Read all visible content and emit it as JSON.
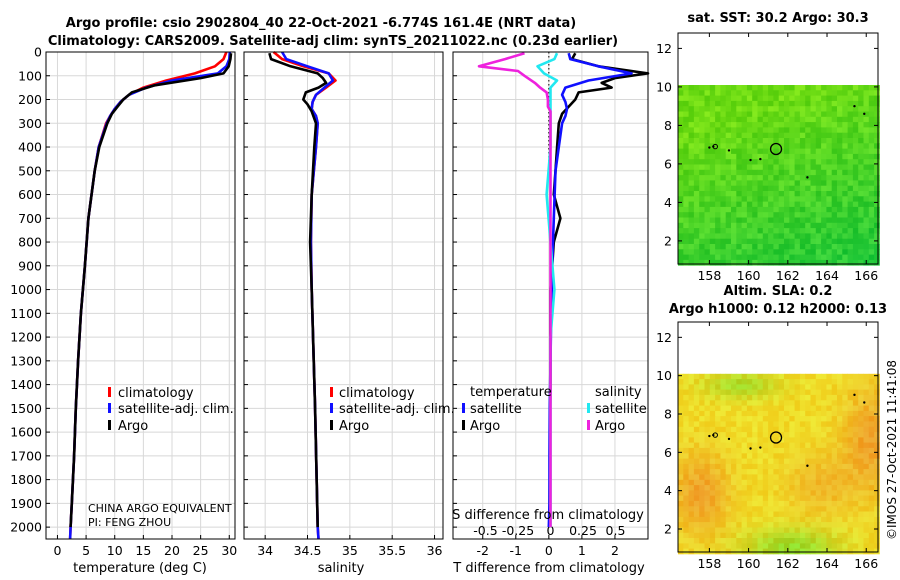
{
  "title": {
    "line1": "Argo profile: csio 2902804_40 22-Oct-2021 -6.774S 161.4E (NRT data)",
    "line2": "Climatology: CARS2009. Satellite-adj clim: synTS_20211022.nc (0.23d earlier)"
  },
  "colors": {
    "climatology": "#ff0000",
    "satellite": "#1010ff",
    "argo": "#000000",
    "s_sat": "#22e8f0",
    "s_argo": "#ee22dd"
  },
  "labels": {
    "temp_xlabel": "temperature (deg C)",
    "sal_xlabel": "salinity",
    "diff_xlabel": "T difference from climatology",
    "diff_s_label": "S difference from climatology",
    "sst_title": "sat. SST: 30.2 Argo: 30.3",
    "sla_title1": "Altim. SLA: 0.2",
    "sla_title2": "Argo h1000: 0.12 h2000: 0.13",
    "credit": "©IMOS 27-Oct-2021 11:41:08",
    "note1": "CHINA ARGO EQUIVALENT",
    "note2": "PI: FENG ZHOU"
  },
  "legend": {
    "climatology": "climatology",
    "satellite_adj": "satellite-adj. clim.",
    "argo": "Argo",
    "temperature": "temperature",
    "salinity": "salinity",
    "satellite": "satellite"
  },
  "chart_data": [
    {
      "type": "line",
      "name": "temperature-profile",
      "xlabel": "temperature (deg C)",
      "ylabel": "depth",
      "xlim": [
        -2,
        31
      ],
      "ylim": [
        2050,
        0
      ],
      "xticks": [
        0,
        5,
        10,
        15,
        20,
        25,
        30
      ],
      "yticks": [
        0,
        100,
        200,
        300,
        400,
        500,
        600,
        700,
        800,
        900,
        1000,
        1100,
        1200,
        1300,
        1400,
        1500,
        1600,
        1700,
        1800,
        1900,
        2000
      ],
      "series": [
        {
          "name": "climatology",
          "depth": [
            0,
            30,
            60,
            90,
            120,
            150,
            180,
            210,
            240,
            270,
            300,
            400,
            500,
            700,
            900,
            1100,
            1300,
            1500,
            1700,
            1900,
            2000,
            2050
          ],
          "values": [
            29.5,
            29,
            27.5,
            24,
            19,
            15,
            12.5,
            11,
            10,
            9.2,
            8.5,
            7.2,
            6.5,
            5.4,
            4.8,
            4.1,
            3.6,
            3.2,
            2.9,
            2.5,
            2.3,
            2.2
          ]
        },
        {
          "name": "satellite-adj. clim.",
          "depth": [
            0,
            30,
            60,
            90,
            120,
            150,
            180,
            210,
            240,
            270,
            300,
            400,
            500,
            700,
            900,
            1100,
            1300,
            1500,
            1700,
            1900,
            2000,
            2050
          ],
          "values": [
            30.1,
            30,
            29.5,
            28,
            20,
            15.5,
            12.5,
            11,
            10,
            9.2,
            8.6,
            7.2,
            6.5,
            5.4,
            4.8,
            4.1,
            3.6,
            3.2,
            2.9,
            2.5,
            2.3,
            2.2
          ]
        },
        {
          "name": "Argo",
          "depth": [
            5,
            30,
            60,
            90,
            110,
            140,
            170,
            200,
            230,
            260,
            300,
            400,
            500,
            700,
            900,
            1100,
            1300,
            1500,
            1700,
            1900,
            2000
          ],
          "values": [
            30.3,
            30.2,
            29.9,
            29,
            25,
            17,
            13,
            11.5,
            10.5,
            9.5,
            8.7,
            7.3,
            6.5,
            5.4,
            4.8,
            4.1,
            3.6,
            3.2,
            2.9,
            2.5,
            2.3
          ]
        }
      ]
    },
    {
      "type": "line",
      "name": "salinity-profile",
      "xlabel": "salinity",
      "ylabel": "depth",
      "xlim": [
        33.75,
        36.1
      ],
      "ylim": [
        2050,
        0
      ],
      "xticks": [
        34,
        34.5,
        35,
        35.5,
        36
      ],
      "series": [
        {
          "name": "climatology",
          "depth": [
            0,
            30,
            60,
            90,
            120,
            150,
            180,
            210,
            240,
            270,
            300,
            400,
            600,
            800,
            1000,
            1500,
            2000,
            2050
          ],
          "values": [
            34.1,
            34.2,
            34.45,
            34.75,
            34.83,
            34.72,
            34.6,
            34.56,
            34.55,
            34.6,
            34.62,
            34.6,
            34.55,
            34.54,
            34.55,
            34.59,
            34.62,
            34.63
          ]
        },
        {
          "name": "satellite-adj. clim.",
          "depth": [
            0,
            30,
            60,
            90,
            120,
            150,
            180,
            210,
            240,
            270,
            300,
            400,
            600,
            800,
            1000,
            1500,
            2000,
            2050
          ],
          "values": [
            34.2,
            34.25,
            34.5,
            34.75,
            34.8,
            34.7,
            34.6,
            34.56,
            34.55,
            34.6,
            34.62,
            34.6,
            34.55,
            34.54,
            34.55,
            34.59,
            34.62,
            34.63
          ]
        },
        {
          "name": "Argo",
          "depth": [
            5,
            30,
            60,
            90,
            110,
            130,
            150,
            170,
            200,
            220,
            250,
            300,
            400,
            600,
            800,
            1000,
            1500,
            2000
          ],
          "values": [
            34.05,
            34.07,
            34.3,
            34.62,
            34.68,
            34.72,
            34.63,
            34.48,
            34.45,
            34.5,
            34.55,
            34.6,
            34.58,
            34.55,
            34.53,
            34.55,
            34.59,
            34.62
          ]
        }
      ]
    },
    {
      "type": "line",
      "name": "difference-profile",
      "xlabel": "T difference from climatology",
      "ylabel": "depth",
      "xlim": [
        -2.9,
        3.0
      ],
      "ylim": [
        2050,
        0
      ],
      "xticks": [
        -2,
        -1,
        0,
        1,
        2
      ],
      "top_xlabel": "S difference from climatology",
      "top_xticks": [
        -0.5,
        -0.25,
        0,
        0.25,
        0.5
      ],
      "series": [
        {
          "name": "temperature Argo",
          "depth": [
            5,
            30,
            60,
            90,
            110,
            130,
            150,
            170,
            200,
            230,
            260,
            300,
            400,
            500,
            600,
            700,
            800,
            900,
            1000,
            1200,
            1400,
            1600,
            1800,
            2000
          ],
          "values": [
            0.8,
            0.7,
            1.5,
            3.0,
            2.0,
            1.6,
            1.9,
            0.9,
            0.8,
            0.6,
            0.4,
            0.3,
            0.25,
            0.2,
            0.15,
            0.35,
            0.15,
            0.1,
            0.05,
            0.05,
            0.05,
            0.03,
            0.03,
            0.02
          ]
        },
        {
          "name": "temperature satellite",
          "depth": [
            5,
            30,
            60,
            90,
            120,
            150,
            180,
            210,
            240,
            270,
            300,
            400,
            500,
            700,
            900,
            1100,
            1300,
            1500,
            1700,
            1900,
            2000
          ],
          "values": [
            0.6,
            0.65,
            1.5,
            2.5,
            1.2,
            0.5,
            0.4,
            0.5,
            0.55,
            0.5,
            0.4,
            0.3,
            0.2,
            0.15,
            0.1,
            0.07,
            0.05,
            0.03,
            0.02,
            0.02,
            0.0
          ]
        },
        {
          "name": "salinity satellite",
          "depth": [
            5,
            30,
            60,
            90,
            120,
            150,
            180,
            250,
            400,
            600,
            800,
            1000,
            1200,
            1500,
            2000
          ],
          "values": [
            0.05,
            0.03,
            -0.1,
            -0.05,
            0.05,
            0.0,
            0.0,
            0.0,
            0.0,
            -0.03,
            0.0,
            0.03,
            0.0,
            0.0,
            0.0
          ]
        },
        {
          "name": "salinity Argo",
          "depth": [
            5,
            30,
            60,
            80,
            100,
            130,
            150,
            170,
            200,
            230,
            250,
            300,
            400,
            600,
            800,
            1000,
            1500,
            2000
          ],
          "values": [
            -0.2,
            -0.35,
            -0.55,
            -0.25,
            -0.2,
            -0.12,
            -0.08,
            -0.03,
            -0.02,
            -0.02,
            0.0,
            0.0,
            0.0,
            0.0,
            0.0,
            0.0,
            0.0,
            0.0
          ]
        }
      ]
    },
    {
      "type": "heatmap",
      "name": "sat-sst-map",
      "title": "sat. SST: 30.2 Argo: 30.3",
      "xlim": [
        156.4,
        166.6
      ],
      "ylim": [
        0.8,
        12.8
      ],
      "xticks": [
        158,
        160,
        162,
        164,
        166
      ],
      "yticks": [
        2,
        4,
        6,
        8,
        10,
        12
      ],
      "data_top_lat": 10.1,
      "profile_location": [
        161.4,
        6.774
      ]
    },
    {
      "type": "heatmap",
      "name": "altim-sla-map",
      "title": "Altim. SLA: 0.2",
      "xlim": [
        156.4,
        166.6
      ],
      "ylim": [
        0.8,
        12.8
      ],
      "xticks": [
        158,
        160,
        162,
        164,
        166
      ],
      "yticks": [
        2,
        4,
        6,
        8,
        10,
        12
      ],
      "data_top_lat": 10.1,
      "profile_location": [
        161.4,
        6.774
      ]
    }
  ]
}
